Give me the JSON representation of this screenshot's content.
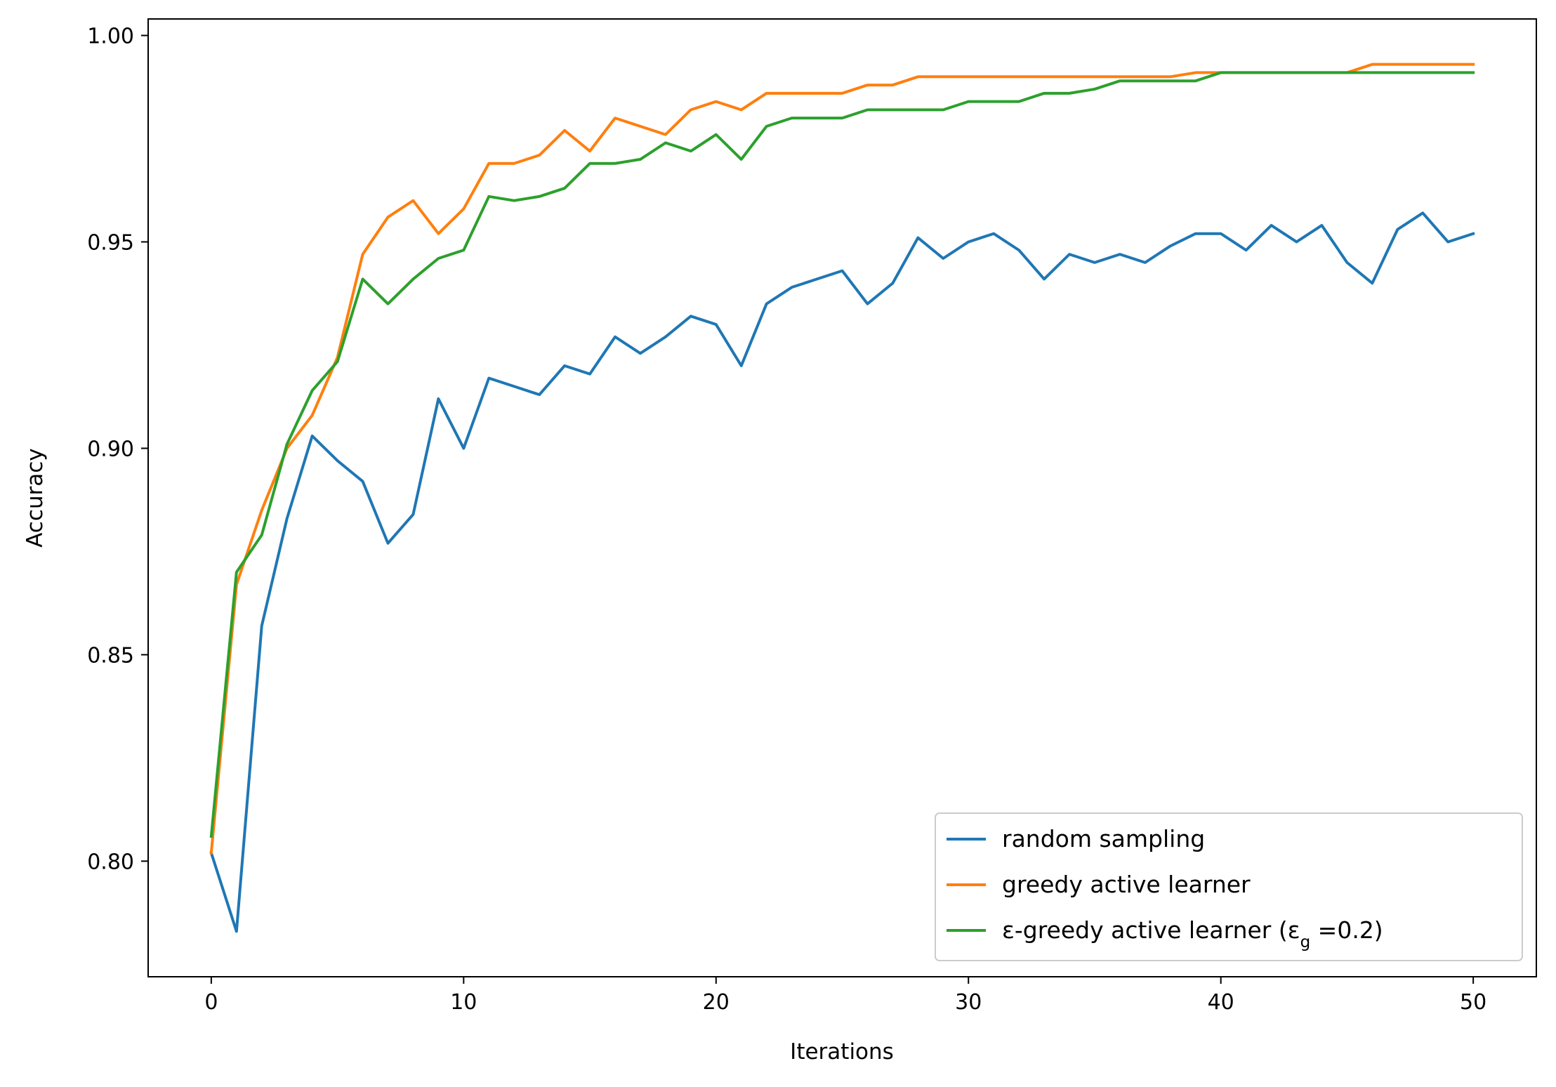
{
  "chart_data": {
    "type": "line",
    "title": "",
    "xlabel": "Iterations",
    "ylabel": "Accuracy",
    "xlim": [
      -2.5,
      52.5
    ],
    "ylim": [
      0.772,
      1.004
    ],
    "xticks": [
      0,
      10,
      20,
      30,
      40,
      50
    ],
    "xtick_labels": [
      "0",
      "10",
      "20",
      "30",
      "40",
      "50"
    ],
    "yticks": [
      0.8,
      0.85,
      0.9,
      0.95,
      1.0
    ],
    "ytick_labels": [
      "0.80",
      "0.85",
      "0.90",
      "0.95",
      "1.00"
    ],
    "grid": false,
    "legend_position": "lower-right",
    "x": [
      0,
      1,
      2,
      3,
      4,
      5,
      6,
      7,
      8,
      9,
      10,
      11,
      12,
      13,
      14,
      15,
      16,
      17,
      18,
      19,
      20,
      21,
      22,
      23,
      24,
      25,
      26,
      27,
      28,
      29,
      30,
      31,
      32,
      33,
      34,
      35,
      36,
      37,
      38,
      39,
      40,
      41,
      42,
      43,
      44,
      45,
      46,
      47,
      48,
      49,
      50
    ],
    "series": [
      {
        "name": "random sampling",
        "color": "#1f77b4",
        "values": [
          0.802,
          0.783,
          0.857,
          0.883,
          0.903,
          0.897,
          0.892,
          0.877,
          0.884,
          0.912,
          0.9,
          0.917,
          0.915,
          0.913,
          0.92,
          0.918,
          0.927,
          0.923,
          0.927,
          0.932,
          0.93,
          0.92,
          0.935,
          0.939,
          0.941,
          0.943,
          0.935,
          0.94,
          0.951,
          0.946,
          0.95,
          0.952,
          0.948,
          0.941,
          0.947,
          0.945,
          0.947,
          0.945,
          0.949,
          0.952,
          0.952,
          0.948,
          0.954,
          0.95,
          0.954,
          0.945,
          0.94,
          0.953,
          0.957,
          0.95,
          0.952
        ]
      },
      {
        "name": "greedy active learner",
        "color": "#ff7f0e",
        "values": [
          0.802,
          0.867,
          0.885,
          0.9,
          0.908,
          0.922,
          0.947,
          0.956,
          0.96,
          0.952,
          0.958,
          0.969,
          0.969,
          0.971,
          0.977,
          0.972,
          0.98,
          0.978,
          0.976,
          0.982,
          0.984,
          0.982,
          0.986,
          0.986,
          0.986,
          0.986,
          0.988,
          0.988,
          0.99,
          0.99,
          0.99,
          0.99,
          0.99,
          0.99,
          0.99,
          0.99,
          0.99,
          0.99,
          0.99,
          0.991,
          0.991,
          0.991,
          0.991,
          0.991,
          0.991,
          0.991,
          0.993,
          0.993,
          0.993,
          0.993,
          0.993
        ]
      },
      {
        "name": "ε-greedy active learner (ε_g =0.2)",
        "color": "#2ca02c",
        "values": [
          0.806,
          0.87,
          0.879,
          0.901,
          0.914,
          0.921,
          0.941,
          0.935,
          0.941,
          0.946,
          0.948,
          0.961,
          0.96,
          0.961,
          0.963,
          0.969,
          0.969,
          0.97,
          0.974,
          0.972,
          0.976,
          0.97,
          0.978,
          0.98,
          0.98,
          0.98,
          0.982,
          0.982,
          0.982,
          0.982,
          0.984,
          0.984,
          0.984,
          0.986,
          0.986,
          0.987,
          0.989,
          0.989,
          0.989,
          0.989,
          0.991,
          0.991,
          0.991,
          0.991,
          0.991,
          0.991,
          0.991,
          0.991,
          0.991,
          0.991,
          0.991
        ]
      }
    ]
  }
}
